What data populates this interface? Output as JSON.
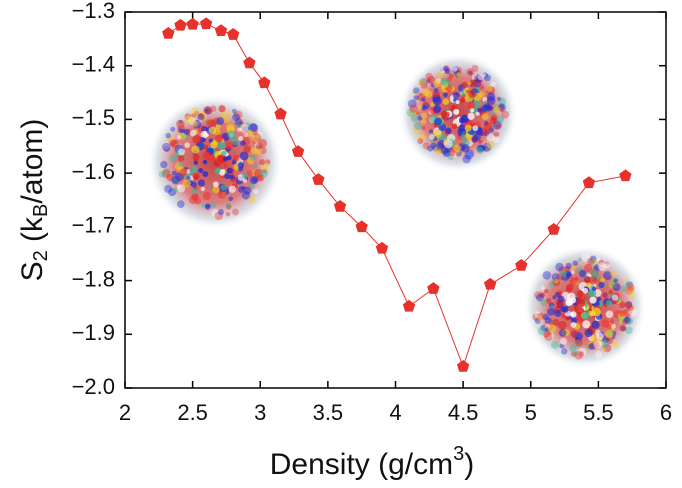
{
  "chart_data": {
    "type": "line",
    "xlabel": [
      "Density (g/cm",
      "3",
      ")"
    ],
    "ylabel": [
      "S",
      "2",
      " (k",
      "B",
      "/atom)"
    ],
    "x": [
      2.32,
      2.41,
      2.5,
      2.6,
      2.71,
      2.8,
      2.92,
      3.03,
      3.15,
      3.28,
      3.43,
      3.59,
      3.75,
      3.9,
      4.1,
      4.28,
      4.5,
      4.7,
      4.93,
      5.17,
      5.43,
      5.7
    ],
    "series": [
      {
        "color": "#e8312a",
        "values": [
          -1.34,
          -1.325,
          -1.323,
          -1.322,
          -1.335,
          -1.342,
          -1.395,
          -1.432,
          -1.49,
          -1.56,
          -1.612,
          -1.662,
          -1.7,
          -1.74,
          -1.848,
          -1.815,
          -1.96,
          -1.807,
          -1.772,
          -1.705,
          -1.618,
          -1.605
        ]
      }
    ],
    "xlim": [
      2,
      6
    ],
    "xticks": [
      2,
      2.5,
      3,
      3.5,
      4,
      4.5,
      5,
      5.5,
      6
    ],
    "ylim": [
      -2.0,
      -1.3
    ],
    "yticks": [
      {
        "value": -2.0,
        "label": "−2.0"
      },
      {
        "value": -1.9,
        "label": "−1.9"
      },
      {
        "value": -1.8,
        "label": "−1.8"
      },
      {
        "value": -1.7,
        "label": "−1.7"
      },
      {
        "value": -1.6,
        "label": "−1.6"
      },
      {
        "value": -1.5,
        "label": "−1.5"
      },
      {
        "value": -1.4,
        "label": "−1.4"
      },
      {
        "value": -1.3,
        "label": "−1.3"
      }
    ]
  }
}
